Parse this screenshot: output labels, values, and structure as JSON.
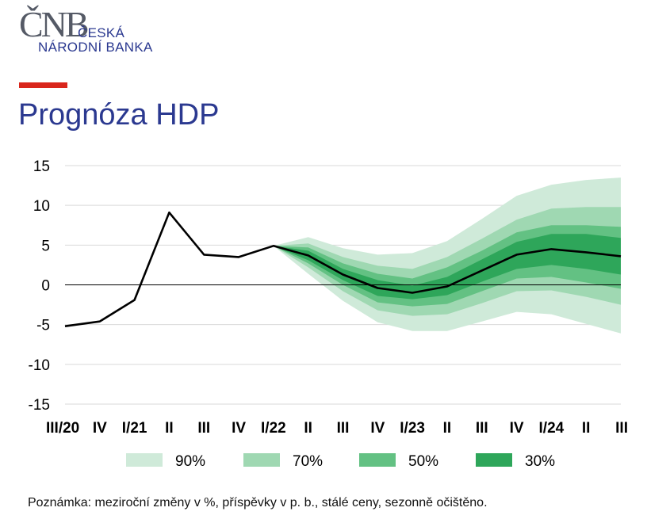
{
  "logo": {
    "mark": "ČNB",
    "line1": "ČESKÁ",
    "line2": "NÁRODNÍ BANKA"
  },
  "page_title": "Prognóza HDP",
  "note": "Poznámka: meziroční změny v %, příspěvky v p. b., stálé ceny, sezonně očištěno.",
  "colors": {
    "brand_blue": "#2b3990",
    "accent_red": "#d9261c",
    "band_90": "#cfead9",
    "band_70": "#9fd8b2",
    "band_50": "#63c183",
    "band_30": "#2ea65a",
    "line": "#000000"
  },
  "chart_data": {
    "type": "area",
    "categories": [
      "III/20",
      "IV",
      "I/21",
      "II",
      "III",
      "IV",
      "I/22",
      "II",
      "III",
      "IV",
      "I/23",
      "II",
      "III",
      "IV",
      "I/24",
      "II",
      "III"
    ],
    "ylim": [
      -15,
      15
    ],
    "yticks": [
      15,
      10,
      5,
      0,
      -5,
      -10,
      -15
    ],
    "ytick_labels": [
      "15",
      "10",
      "5",
      "0",
      "-5",
      "-10",
      "-15"
    ],
    "grid": true,
    "line_series": {
      "values": [
        -5.2,
        -4.6,
        -1.9,
        9.1,
        3.8,
        3.5,
        4.9,
        3.7,
        1.3,
        -0.4,
        -1.0,
        -0.2,
        1.8,
        3.8,
        4.5,
        4.1,
        3.6
      ]
    },
    "fan_start_index": 6,
    "bands": [
      {
        "name": "90%",
        "lower": [
          4.9,
          1.4,
          -2.0,
          -4.7,
          -5.8,
          -5.8,
          -4.6,
          -3.4,
          -3.7,
          -4.9,
          -6.1
        ],
        "upper": [
          4.9,
          6.0,
          4.6,
          3.8,
          4.0,
          5.5,
          8.3,
          11.2,
          12.6,
          13.2,
          13.5
        ]
      },
      {
        "name": "70%",
        "lower": [
          4.9,
          2.2,
          -0.8,
          -3.2,
          -3.9,
          -3.7,
          -2.3,
          -0.8,
          -0.7,
          -1.5,
          -2.5
        ],
        "upper": [
          4.9,
          5.2,
          3.5,
          2.4,
          2.0,
          3.5,
          5.8,
          8.2,
          9.6,
          9.8,
          9.8
        ]
      },
      {
        "name": "50%",
        "lower": [
          4.9,
          2.7,
          0.0,
          -2.2,
          -2.7,
          -2.4,
          -0.8,
          0.8,
          1.0,
          0.3,
          -0.5
        ],
        "upper": [
          4.9,
          4.7,
          2.7,
          1.4,
          0.8,
          2.2,
          4.3,
          6.6,
          7.5,
          7.5,
          7.3
        ]
      },
      {
        "name": "30%",
        "lower": [
          4.9,
          3.1,
          0.6,
          -1.4,
          -1.8,
          -1.3,
          0.4,
          2.0,
          2.5,
          2.0,
          1.3
        ],
        "upper": [
          4.9,
          4.3,
          2.0,
          0.6,
          -0.1,
          1.0,
          3.2,
          5.4,
          6.4,
          6.4,
          5.9
        ]
      }
    ],
    "legend": [
      {
        "label": "90%",
        "color_key": "band_90"
      },
      {
        "label": "70%",
        "color_key": "band_70"
      },
      {
        "label": "50%",
        "color_key": "band_50"
      },
      {
        "label": "30%",
        "color_key": "band_30"
      }
    ],
    "legend_position": "bottom"
  }
}
